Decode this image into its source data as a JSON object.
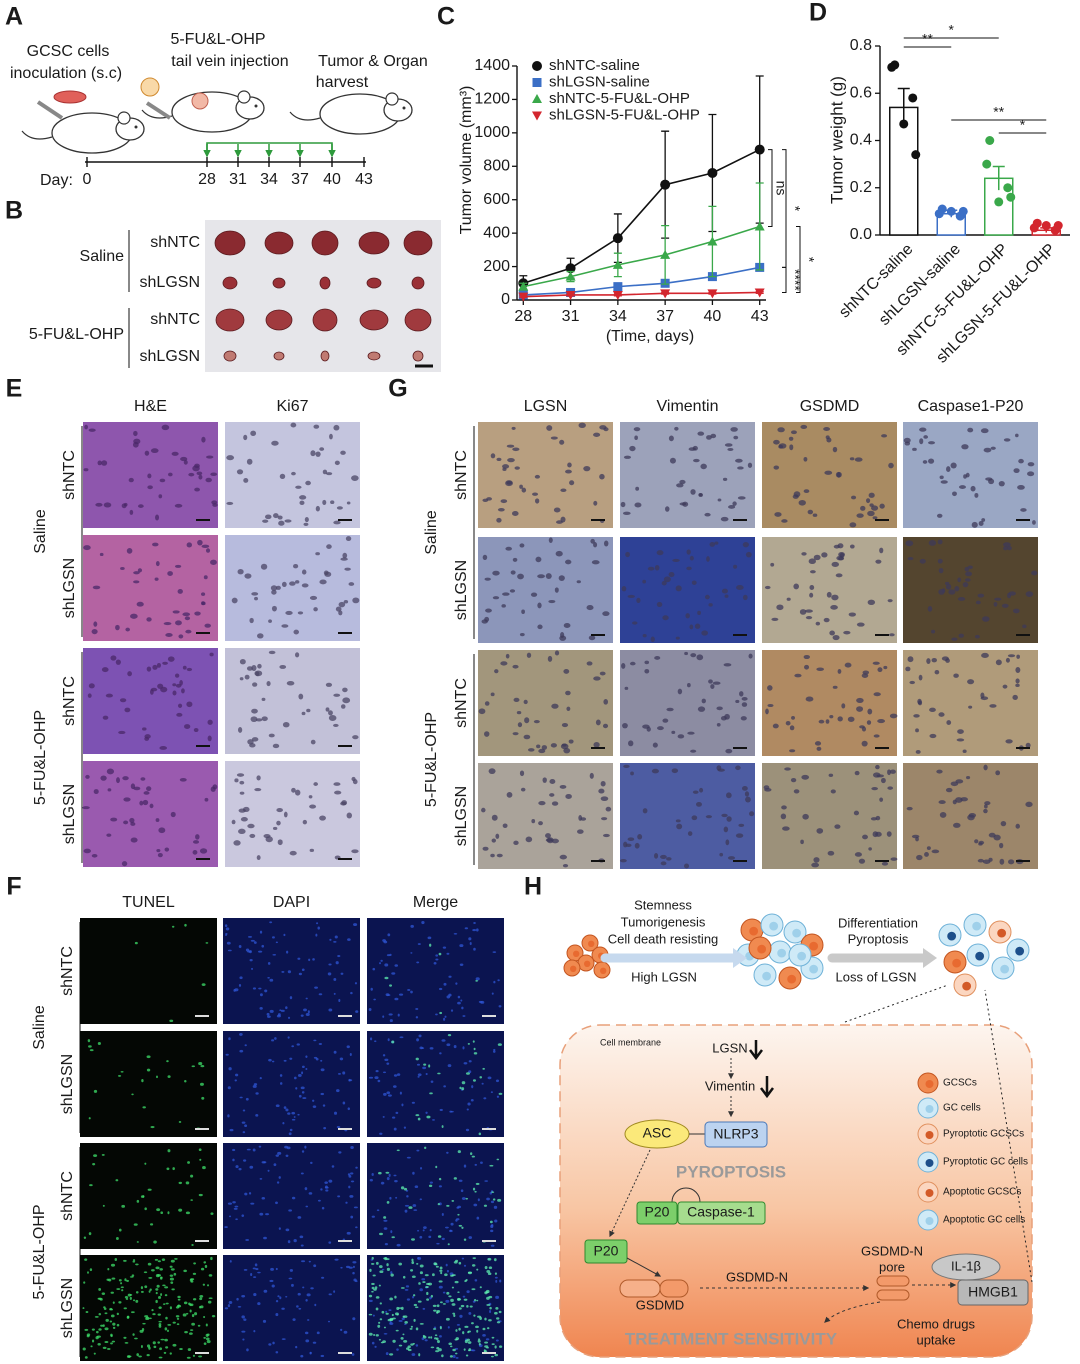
{
  "panel_labels": [
    "A",
    "B",
    "C",
    "D",
    "E",
    "G",
    "F",
    "H"
  ],
  "panel_a": {
    "inoculation": [
      "GCSC cells",
      "inoculation (s.c)"
    ],
    "injection": [
      "5-FU&L-OHP",
      "tail vein injection"
    ],
    "harvest": [
      "Tumor & Organ",
      "harvest"
    ],
    "day_label": "Day:",
    "days": [
      0,
      28,
      31,
      34,
      37,
      40,
      43
    ]
  },
  "panel_b": {
    "groups": [
      "Saline",
      "5-FU&L-OHP"
    ],
    "rows": [
      "shNTC",
      "shLGSN",
      "shNTC",
      "shLGSN"
    ]
  },
  "chart_data": [
    {
      "type": "line",
      "ylabel": "Tumor volume (mm³)",
      "xlabel": "(Time, days)",
      "x": [
        28,
        31,
        34,
        37,
        40,
        43
      ],
      "xlim": [
        27.6,
        43.4
      ],
      "xticks": [
        28,
        31,
        34,
        37,
        40,
        43
      ],
      "ylim": [
        0,
        1400
      ],
      "yticks": [
        0,
        200,
        400,
        600,
        800,
        1000,
        1200,
        1400
      ],
      "legend": "upper left",
      "series": [
        {
          "name": "shNTC-saline",
          "color": "#111111",
          "marker": "circle",
          "values": [
            100,
            190,
            370,
            690,
            760,
            900
          ],
          "errors": [
            45,
            60,
            145,
            320,
            350,
            440
          ]
        },
        {
          "name": "shLGSN-saline",
          "color": "#3b6fc6",
          "marker": "square",
          "values": [
            30,
            45,
            80,
            100,
            140,
            195
          ],
          "errors": [
            10,
            10,
            15,
            15,
            20,
            20
          ]
        },
        {
          "name": "shNTC-5-FU&L-OHP",
          "color": "#3aa84a",
          "marker": "triangle-up",
          "values": [
            80,
            140,
            210,
            270,
            350,
            440
          ],
          "errors": [
            20,
            30,
            70,
            175,
            210,
            260
          ]
        },
        {
          "name": "shLGSN-5-FU&L-OHP",
          "color": "#d3262e",
          "marker": "triangle-down",
          "values": [
            20,
            30,
            30,
            40,
            40,
            45
          ],
          "errors": [
            5,
            5,
            5,
            5,
            5,
            5
          ]
        }
      ],
      "annotations": [
        "ns",
        "*",
        "*",
        "****"
      ]
    },
    {
      "type": "bar",
      "ylabel": "Tumor weight (g)",
      "categories": [
        "shNTC-saline",
        "shLGSN-saline",
        "shNTC-5-FU&L-OHP",
        "shLGSN-5-FU&L-OHP"
      ],
      "values": [
        0.54,
        0.09,
        0.24,
        0.02
      ],
      "errors": [
        0.08,
        0.015,
        0.05,
        0.01
      ],
      "colors": [
        "#111111",
        "#3b6fc6",
        "#3aa84a",
        "#d3262e"
      ],
      "points": [
        [
          0.72,
          0.58,
          0.47,
          0.71,
          0.34
        ],
        [
          0.11,
          0.08,
          0.1,
          0.09,
          0.1
        ],
        [
          0.4,
          0.2,
          0.14,
          0.3,
          0.16
        ],
        [
          0.05,
          0.02,
          0.04,
          0.03,
          0.04
        ]
      ],
      "ylim": [
        0,
        0.8
      ],
      "yticks": [
        {
          "value": 0,
          "label": "0.0"
        },
        0.2,
        0.4,
        0.6,
        0.8
      ],
      "annotations": [
        "*",
        "**",
        "**",
        "*"
      ]
    }
  ],
  "panel_e": {
    "columns": [
      "H&E",
      "Ki67"
    ],
    "groups": [
      "Saline",
      "5-FU&L-OHP"
    ],
    "rows": [
      "shNTC",
      "shLGSN",
      "shNTC",
      "shLGSN"
    ]
  },
  "panel_g": {
    "columns": [
      "LGSN",
      "Vimentin",
      "GSDMD",
      "Caspase1-P20"
    ],
    "groups": [
      "Saline",
      "5-FU&L-OHP"
    ],
    "rows": [
      "shNTC",
      "shLGSN",
      "shNTC",
      "shLGSN"
    ]
  },
  "panel_f": {
    "columns": [
      "TUNEL",
      "DAPI",
      "Merge"
    ],
    "groups": [
      "Saline",
      "5-FU&L-OHP"
    ],
    "rows": [
      "shNTC",
      "shLGSN",
      "shNTC",
      "shLGSN"
    ]
  },
  "panel_h": {
    "upper_left": [
      "Stemness",
      "Tumorigenesis",
      "Cell death resisting"
    ],
    "upper_left_arrow": "High LGSN",
    "upper_right": [
      "Differentiation",
      "Pyroptosis"
    ],
    "upper_right_arrow": "Loss of LGSN",
    "membrane": "Cell membrane",
    "lgsn": "LGSN",
    "vimentin": "Vimentin",
    "asc": "ASC",
    "nlrp3": "NLRP3",
    "pyroptosis": "PYROPTOSIS",
    "p20_complex": "P20",
    "caspase1": "Caspase-1",
    "p20": "P20",
    "gsdmd": "GSDMD",
    "gsdmd_n": "GSDMD-N",
    "pore": [
      "GSDMD-N",
      "pore"
    ],
    "il1b": "IL-1β",
    "hmgb1": "HMGB1",
    "chemo": [
      "Chemo drugs",
      "uptake"
    ],
    "treatment": "TREATMENT SENSITIVITY",
    "legend": [
      "GCSCs",
      "GC cells",
      "Pyroptotic GCSCs",
      "Pyroptotic GC cells",
      "Apoptotic GCSCs",
      "Apoptotic GC  cells"
    ]
  }
}
